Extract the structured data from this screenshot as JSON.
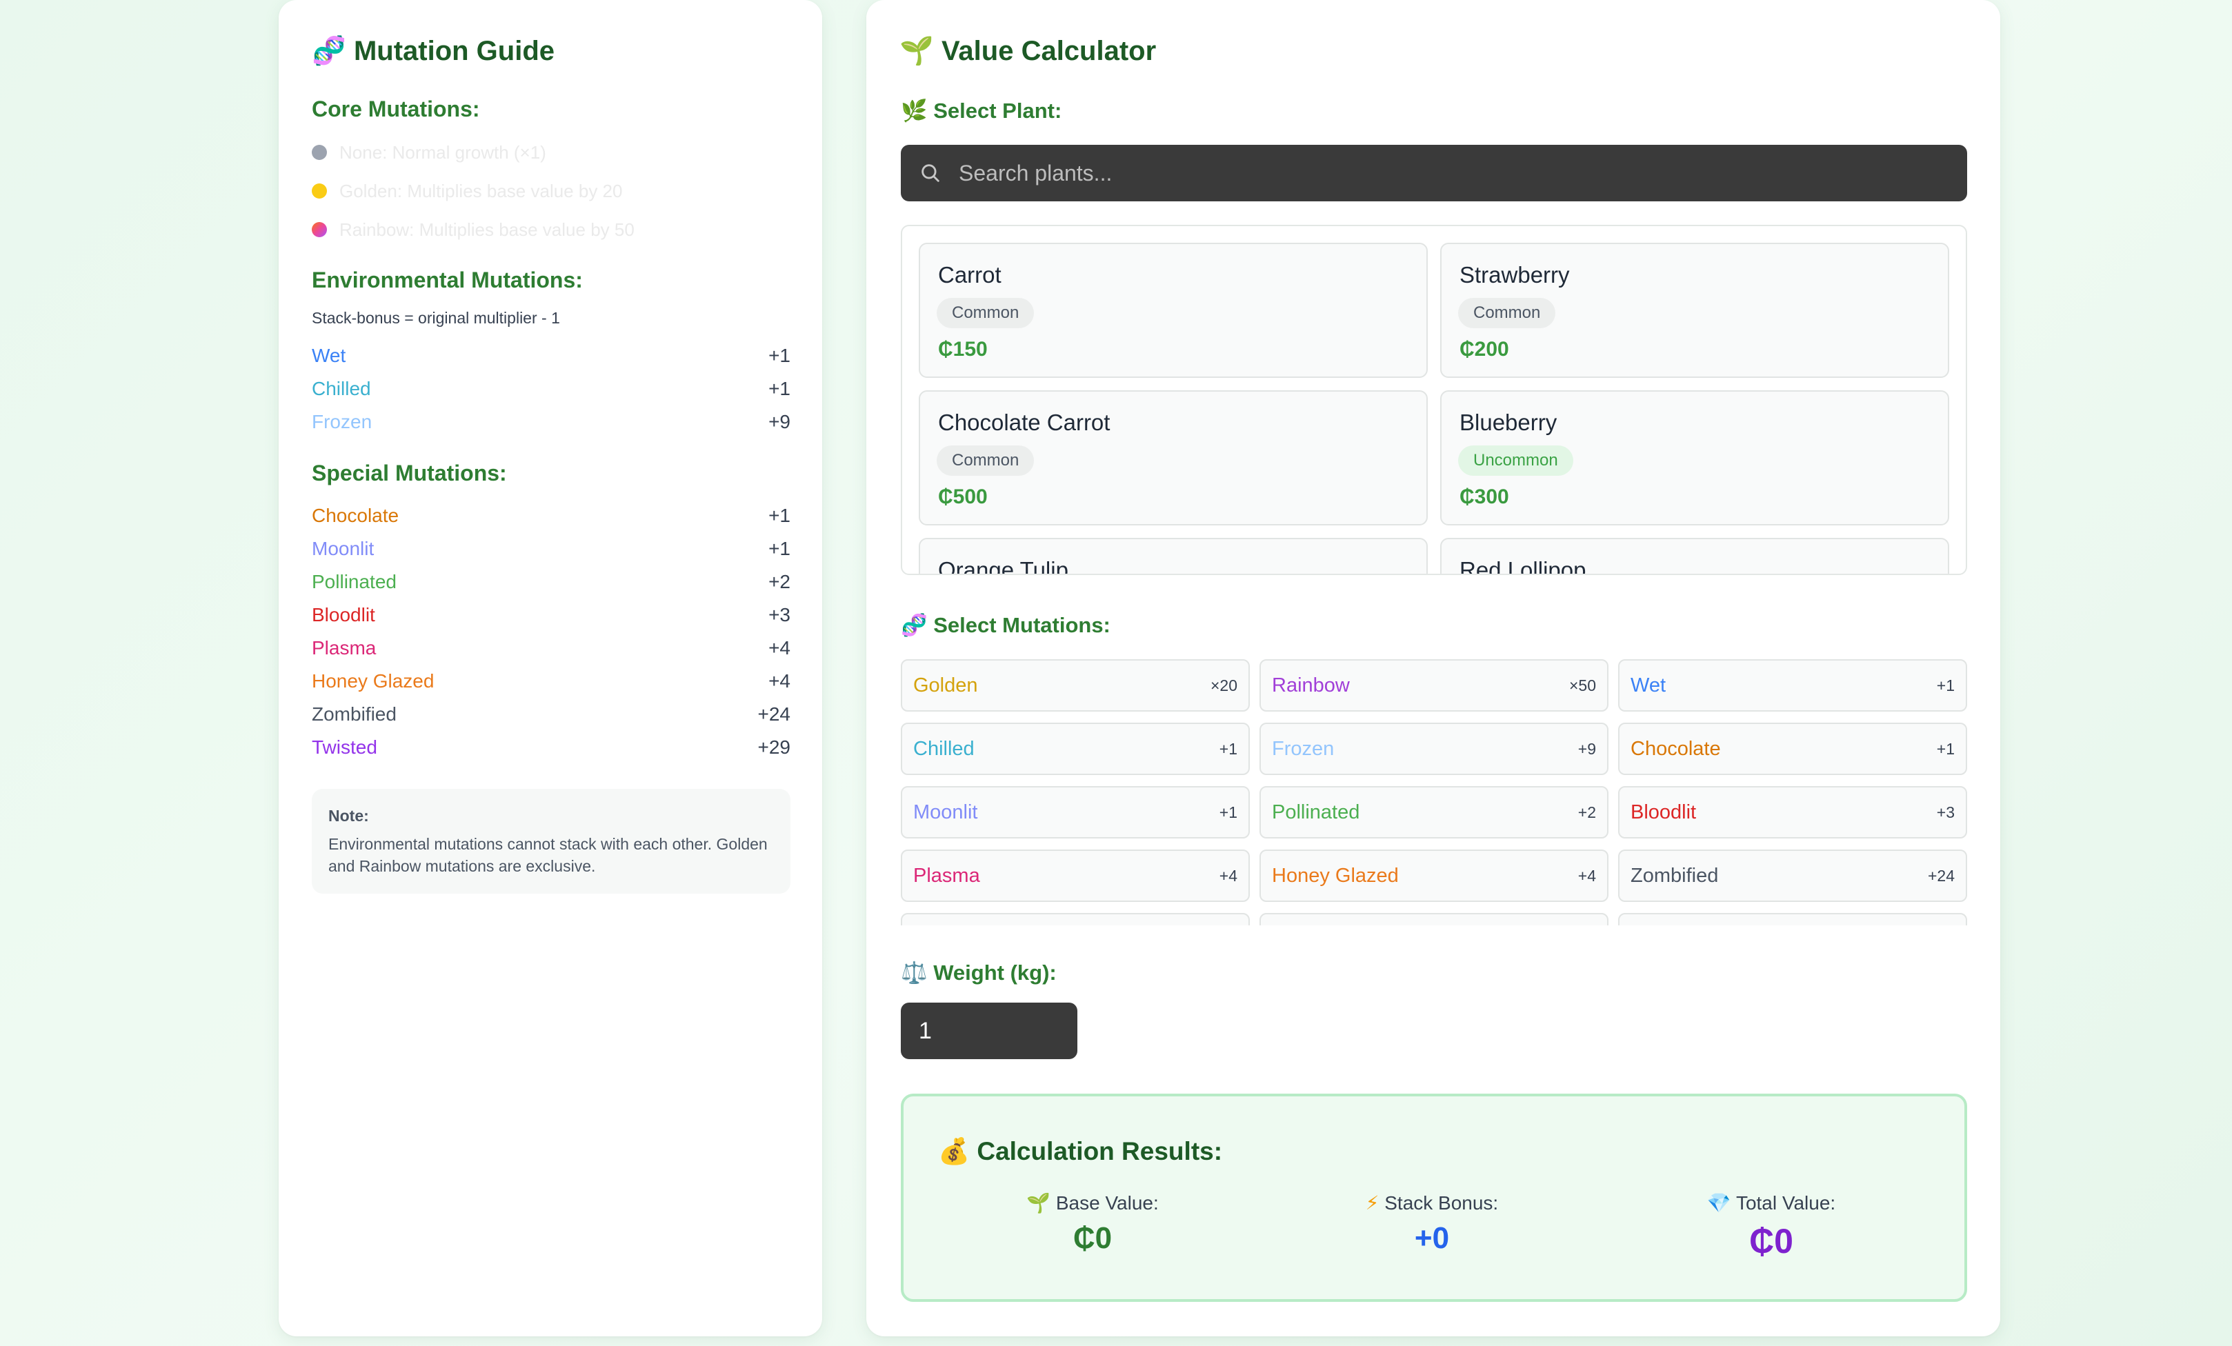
{
  "guide": {
    "icon": "dna-icon",
    "title": "Mutation Guide",
    "core": {
      "title": "Core Mutations:",
      "items": [
        {
          "text": "None: Normal growth (×1)",
          "color": "#9ca3af"
        },
        {
          "text": "Golden: Multiplies base value by 20",
          "color": "#facc15"
        },
        {
          "text": "Rainbow: Multiplies base value by 50",
          "color": "gradient"
        }
      ]
    },
    "environmental": {
      "title": "Environmental Mutations:",
      "note": "Stack-bonus = original multiplier - 1",
      "items": [
        {
          "name": "Wet",
          "value": "+1",
          "color": "#3b82f6"
        },
        {
          "name": "Chilled",
          "value": "+1",
          "color": "#3ab0cf"
        },
        {
          "name": "Frozen",
          "value": "+9",
          "color": "#93c5fd"
        }
      ]
    },
    "special": {
      "title": "Special Mutations:",
      "items": [
        {
          "name": "Chocolate",
          "value": "+1",
          "color": "#d97706"
        },
        {
          "name": "Moonlit",
          "value": "+1",
          "color": "#818cf8"
        },
        {
          "name": "Pollinated",
          "value": "+2",
          "color": "#4caf50"
        },
        {
          "name": "Bloodlit",
          "value": "+3",
          "color": "#dc2626"
        },
        {
          "name": "Plasma",
          "value": "+4",
          "color": "#db2777"
        },
        {
          "name": "Honey Glazed",
          "value": "+4",
          "color": "#ea7a1b"
        },
        {
          "name": "Zombified",
          "value": "+24",
          "color": "#4b5563"
        },
        {
          "name": "Twisted",
          "value": "+29",
          "color": "#9333ea"
        }
      ]
    },
    "note": {
      "title": "Note:",
      "body": "Environmental mutations cannot stack with each other. Golden and Rainbow mutations are exclusive."
    }
  },
  "calculator": {
    "icon": "seedling-icon",
    "title": "Value Calculator",
    "select_plant": {
      "icon": "herb-icon",
      "label": "Select Plant:"
    },
    "search": {
      "placeholder": "Search plants...",
      "value": ""
    },
    "plants": [
      {
        "name": "Carrot",
        "rarity": "Common",
        "price": "₵150"
      },
      {
        "name": "Strawberry",
        "rarity": "Common",
        "price": "₵200"
      },
      {
        "name": "Chocolate Carrot",
        "rarity": "Common",
        "price": "₵500"
      },
      {
        "name": "Blueberry",
        "rarity": "Uncommon",
        "price": "₵300"
      },
      {
        "name": "Orange Tulip",
        "rarity": "",
        "price": ""
      },
      {
        "name": "Red Lollipop",
        "rarity": "",
        "price": ""
      }
    ],
    "select_mutations": {
      "icon": "dna-icon",
      "label": "Select Mutations:"
    },
    "mutations": [
      {
        "name": "Golden",
        "mult": "×20",
        "color": "#d4a20c"
      },
      {
        "name": "Rainbow",
        "mult": "×50",
        "color": "#a13fd8"
      },
      {
        "name": "Wet",
        "mult": "+1",
        "color": "#3b82f6"
      },
      {
        "name": "Chilled",
        "mult": "+1",
        "color": "#3ab0cf"
      },
      {
        "name": "Frozen",
        "mult": "+9",
        "color": "#93c5fd"
      },
      {
        "name": "Chocolate",
        "mult": "+1",
        "color": "#d97706"
      },
      {
        "name": "Moonlit",
        "mult": "+1",
        "color": "#818cf8"
      },
      {
        "name": "Pollinated",
        "mult": "+2",
        "color": "#4caf50"
      },
      {
        "name": "Bloodlit",
        "mult": "+3",
        "color": "#dc2626"
      },
      {
        "name": "Plasma",
        "mult": "+4",
        "color": "#db2777"
      },
      {
        "name": "Honey Glazed",
        "mult": "+4",
        "color": "#ea7a1b"
      },
      {
        "name": "Zombified",
        "mult": "+24",
        "color": "#4b5563"
      }
    ],
    "weight": {
      "icon": "scale-icon",
      "label": "Weight (kg):",
      "value": "1"
    },
    "results": {
      "icon": "money-bag-icon",
      "title": "Calculation Results:",
      "base": {
        "icon": "seedling-icon",
        "label": "Base Value:",
        "value": "₵0",
        "color": "#2e7d32"
      },
      "stack": {
        "icon": "lightning-icon",
        "label": "Stack Bonus:",
        "value": "+0",
        "color": "#2563eb"
      },
      "total": {
        "icon": "gem-icon",
        "label": "Total Value:",
        "value": "₵0",
        "color": "#7e22ce"
      }
    }
  }
}
